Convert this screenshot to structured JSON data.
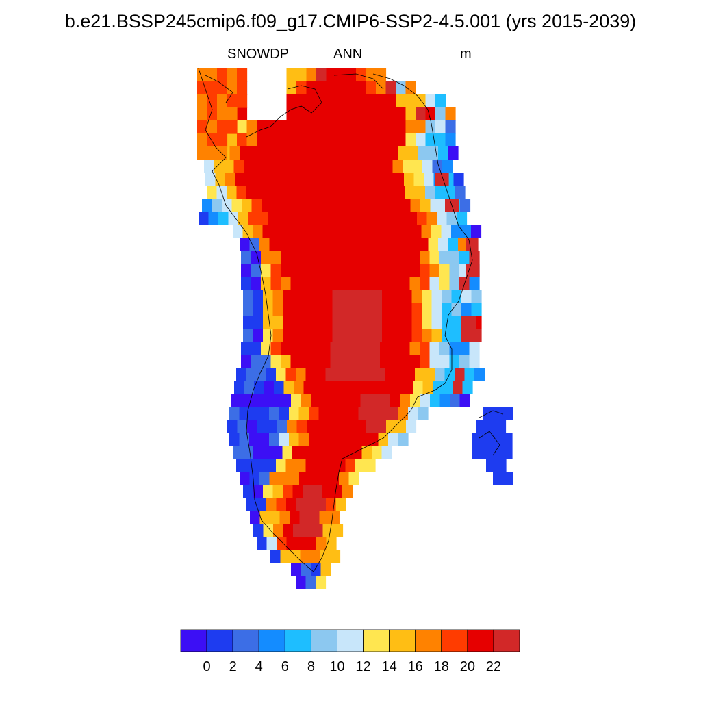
{
  "header": {
    "title": "b.e21.BSSP245cmip6.f09_g17.CMIP6-SSP2-4.5.001 (yrs 2015-2039)",
    "variable": "SNOWDP",
    "period": "ANN",
    "units": "m"
  },
  "colorbar": {
    "colors": [
      "#3c0ff5",
      "#1e3cf0",
      "#3c6ee6",
      "#148cff",
      "#1ebeff",
      "#8cc8f0",
      "#c8e6fa",
      "#ffe650",
      "#ffbe14",
      "#ff8200",
      "#ff3c00",
      "#e60000",
      "#d22828"
    ],
    "labels": [
      "0",
      "2",
      "4",
      "6",
      "8",
      "10",
      "12",
      "14",
      "16",
      "18",
      "20",
      "22"
    ]
  },
  "map": {
    "region": "Greenland",
    "field": "annual mean snow depth",
    "note": "Ice-sheet interior 20-22 m (red); coastal margins near 0-2 m (blue); transition 8-18 m"
  }
}
